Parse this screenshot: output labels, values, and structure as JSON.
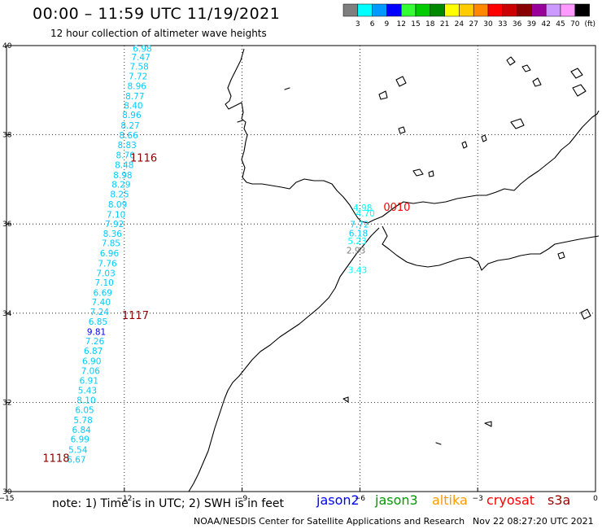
{
  "header": {
    "title": "00:00 – 11:59 UTC 11/19/2021",
    "subtitle": "12 hour collection of altimeter wave heights"
  },
  "legend": {
    "unit": "(ft)",
    "bins": [
      {
        "label": "3",
        "color": "#7f7f7f"
      },
      {
        "label": "6",
        "color": "#00ffff"
      },
      {
        "label": "9",
        "color": "#0099ff"
      },
      {
        "label": "12",
        "color": "#0000ff"
      },
      {
        "label": "15",
        "color": "#33ff33"
      },
      {
        "label": "18",
        "color": "#00cc00"
      },
      {
        "label": "21",
        "color": "#008800"
      },
      {
        "label": "24",
        "color": "#ffff00"
      },
      {
        "label": "27",
        "color": "#ffcc00"
      },
      {
        "label": "30",
        "color": "#ff8800"
      },
      {
        "label": "33",
        "color": "#ff0000"
      },
      {
        "label": "36",
        "color": "#cc0000"
      },
      {
        "label": "39",
        "color": "#880000"
      },
      {
        "label": "42",
        "color": "#990099"
      },
      {
        "label": "45",
        "color": "#cc99ff"
      },
      {
        "label": "70",
        "color": "#ff99ff"
      },
      {
        "label": "",
        "color": "#000000"
      }
    ]
  },
  "axes": {
    "x_ticks": [
      {
        "value": -15,
        "label": "−15"
      },
      {
        "value": -12,
        "label": "−12"
      },
      {
        "value": -9,
        "label": "−9"
      },
      {
        "value": -6,
        "label": "−6"
      },
      {
        "value": -3,
        "label": "−3"
      },
      {
        "value": 0,
        "label": "0"
      }
    ],
    "y_ticks": [
      {
        "value": 40,
        "label": "40"
      },
      {
        "value": 38,
        "label": "38"
      },
      {
        "value": 36,
        "label": "36"
      },
      {
        "value": 34,
        "label": "34"
      },
      {
        "value": 32,
        "label": "32"
      },
      {
        "value": 30,
        "label": "30"
      }
    ]
  },
  "observations": [
    {
      "lon": -11.54,
      "lat": 39.86,
      "swh": "6.98",
      "color": "#00ccff"
    },
    {
      "lon": -11.58,
      "lat": 39.67,
      "swh": "7.47",
      "color": "#00ccff"
    },
    {
      "lon": -11.62,
      "lat": 39.46,
      "swh": "7.58",
      "color": "#00ccff"
    },
    {
      "lon": -11.65,
      "lat": 39.24,
      "swh": "7.72",
      "color": "#00ccff"
    },
    {
      "lon": -11.68,
      "lat": 39.02,
      "swh": "8.96",
      "color": "#00ccff"
    },
    {
      "lon": -11.73,
      "lat": 38.8,
      "swh": "8.77",
      "color": "#00ccff"
    },
    {
      "lon": -11.77,
      "lat": 38.59,
      "swh": "8.40",
      "color": "#00ccff"
    },
    {
      "lon": -11.81,
      "lat": 38.38,
      "swh": "8.96",
      "color": "#00ccff"
    },
    {
      "lon": -11.85,
      "lat": 38.14,
      "swh": "8.27",
      "color": "#00ccff"
    },
    {
      "lon": -11.89,
      "lat": 37.92,
      "swh": "8.66",
      "color": "#00ccff"
    },
    {
      "lon": -11.93,
      "lat": 37.7,
      "swh": "8.83",
      "color": "#00ccff"
    },
    {
      "lon": -11.97,
      "lat": 37.47,
      "swh": "8.70",
      "color": "#00ccff"
    },
    {
      "lon": -12.0,
      "lat": 37.25,
      "swh": "8.48",
      "color": "#00ccff"
    },
    {
      "lon": -12.04,
      "lat": 37.03,
      "swh": "8.98",
      "color": "#00ccff"
    },
    {
      "lon": -12.08,
      "lat": 36.82,
      "swh": "8.29",
      "color": "#00ccff"
    },
    {
      "lon": -12.12,
      "lat": 36.6,
      "swh": "8.25",
      "color": "#00ccff"
    },
    {
      "lon": -12.17,
      "lat": 36.37,
      "swh": "8.09",
      "color": "#00ccff"
    },
    {
      "lon": -12.21,
      "lat": 36.14,
      "swh": "7.10",
      "color": "#00ccff"
    },
    {
      "lon": -12.25,
      "lat": 35.93,
      "swh": "7.92",
      "color": "#00ccff"
    },
    {
      "lon": -12.3,
      "lat": 35.71,
      "swh": "8.36",
      "color": "#00ccff"
    },
    {
      "lon": -12.34,
      "lat": 35.5,
      "swh": "7.85",
      "color": "#00ccff"
    },
    {
      "lon": -12.38,
      "lat": 35.27,
      "swh": "6.96",
      "color": "#00ccff"
    },
    {
      "lon": -12.43,
      "lat": 35.05,
      "swh": "7.76",
      "color": "#00ccff"
    },
    {
      "lon": -12.47,
      "lat": 34.83,
      "swh": "7.03",
      "color": "#00ccff"
    },
    {
      "lon": -12.51,
      "lat": 34.62,
      "swh": "7.10",
      "color": "#00ccff"
    },
    {
      "lon": -12.55,
      "lat": 34.39,
      "swh": "6.69",
      "color": "#00ccff"
    },
    {
      "lon": -12.59,
      "lat": 34.18,
      "swh": "7.40",
      "color": "#00ccff"
    },
    {
      "lon": -12.63,
      "lat": 33.96,
      "swh": "7.24",
      "color": "#00ccff"
    },
    {
      "lon": -12.67,
      "lat": 33.74,
      "swh": "6.85",
      "color": "#00ccff"
    },
    {
      "lon": -12.71,
      "lat": 33.51,
      "swh": "9.81",
      "color": "#0000ff"
    },
    {
      "lon": -12.75,
      "lat": 33.3,
      "swh": "7.26",
      "color": "#00ccff"
    },
    {
      "lon": -12.79,
      "lat": 33.08,
      "swh": "6.87",
      "color": "#00ccff"
    },
    {
      "lon": -12.83,
      "lat": 32.86,
      "swh": "6.90",
      "color": "#00ccff"
    },
    {
      "lon": -12.86,
      "lat": 32.64,
      "swh": "7.06",
      "color": "#00ccff"
    },
    {
      "lon": -12.9,
      "lat": 32.42,
      "swh": "6.91",
      "color": "#00ccff"
    },
    {
      "lon": -12.94,
      "lat": 32.2,
      "swh": "5.43",
      "color": "#00ccff"
    },
    {
      "lon": -12.97,
      "lat": 31.98,
      "swh": "8.10",
      "color": "#00ccff"
    },
    {
      "lon": -13.01,
      "lat": 31.76,
      "swh": "6.05",
      "color": "#00ccff"
    },
    {
      "lon": -13.05,
      "lat": 31.53,
      "swh": "5.78",
      "color": "#00ccff"
    },
    {
      "lon": -13.09,
      "lat": 31.31,
      "swh": "6.84",
      "color": "#00ccff"
    },
    {
      "lon": -13.13,
      "lat": 31.1,
      "swh": "6.99",
      "color": "#00ccff"
    },
    {
      "lon": -13.18,
      "lat": 30.87,
      "swh": "5.54",
      "color": "#00ccff"
    },
    {
      "lon": -13.22,
      "lat": 30.65,
      "swh": "6.67",
      "color": "#00ccff"
    },
    {
      "lon": -5.93,
      "lat": 36.3,
      "swh": "4.98",
      "color": "#00ffff"
    },
    {
      "lon": -5.86,
      "lat": 36.17,
      "swh": "4.70",
      "color": "#00ffff"
    },
    {
      "lon": -6.01,
      "lat": 35.92,
      "swh": "7.72",
      "color": "#00ccff"
    },
    {
      "lon": -6.04,
      "lat": 35.72,
      "swh": "6.18",
      "color": "#00ccff"
    },
    {
      "lon": -6.07,
      "lat": 35.55,
      "swh": "5.23",
      "color": "#00ffff"
    },
    {
      "lon": -6.1,
      "lat": 35.34,
      "swh": "2.93",
      "color": "#7f7f7f"
    },
    {
      "lon": -6.06,
      "lat": 34.9,
      "swh": "3.43",
      "color": "#00ffff"
    }
  ],
  "pass_labels": [
    {
      "lon": -11.85,
      "lat": 37.4,
      "text": "1116",
      "color": "#880000"
    },
    {
      "lon": -12.06,
      "lat": 33.87,
      "text": "1117",
      "color": "#880000"
    },
    {
      "lon": -14.08,
      "lat": 30.67,
      "text": "1118",
      "color": "#880000"
    },
    {
      "lon": -5.4,
      "lat": 36.3,
      "text": "0010",
      "color": "#ff0000"
    }
  ],
  "footer": {
    "note": "note:  1) Time is in UTC;  2) SWH is in feet",
    "satellites": [
      {
        "name": "jason2",
        "color": "#0000ff"
      },
      {
        "name": "jason3",
        "color": "#009900"
      },
      {
        "name": "altika",
        "color": "#ff9900"
      },
      {
        "name": "cryosat",
        "color": "#ff0000"
      },
      {
        "name": "s3a",
        "color": "#990000"
      }
    ],
    "credit": "NOAA/NESDIS Center for Satellite Applications and Research",
    "timestamp": "Nov 22 08:27:20 UTC 2021"
  }
}
